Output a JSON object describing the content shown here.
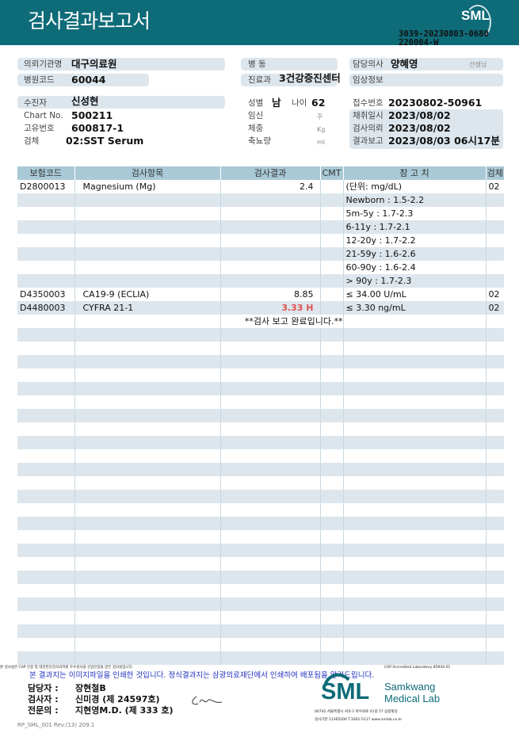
{
  "header": {
    "title": "검사결과보고서",
    "logo": "SML",
    "doc_no_line1": "3039-20230803-0680",
    "doc_no_line2": "220004-W",
    "brand_color": "#0e6b78"
  },
  "info": {
    "institution_label": "의뢰기관명",
    "institution": "대구의료원",
    "hospital_code_label": "병원코드",
    "hospital_code": "60044",
    "ward_label": "병  동",
    "ward": "",
    "dept_label": "진료과",
    "dept": "3건강증진센터",
    "doctor_label": "담당의사",
    "doctor": "양혜영",
    "doctor_suffix": "선생님",
    "clinical_label": "임상정보",
    "clinical": "",
    "patient_label": "수진자",
    "patient": "신성현",
    "chart_label": "Chart No.",
    "chart": "500211",
    "unique_label": "고유번호",
    "unique": "600817-1",
    "specimen_label": "검체",
    "specimen": "02:SST Serum",
    "sex_label": "성별",
    "sex": "남",
    "age_label": "나이",
    "age": "62",
    "pregnancy_label": "임신",
    "pregnancy_unit": "주",
    "weight_label": "체중",
    "weight_unit": "Kg",
    "urine_label": "축뇨량",
    "urine_unit": "ml",
    "receipt_label": "접수번호",
    "receipt": "20230802-50961",
    "collect_label": "채취일시",
    "collect": "2023/08/02",
    "request_label": "검사의뢰",
    "request": "2023/08/02",
    "report_label": "결과보고",
    "report": "2023/08/03 06시17분"
  },
  "table": {
    "headers": [
      "보험코드",
      "검사항목",
      "검사결과",
      "CMT",
      "참 고 치",
      "검체"
    ],
    "rows": [
      [
        "D2800013",
        "Magnesium (Mg)",
        "2.4",
        "",
        "(단위: mg/dL)",
        "02"
      ],
      [
        "",
        "",
        "",
        "",
        "Newborn : 1.5-2.2",
        ""
      ],
      [
        "",
        "",
        "",
        "",
        "5m-5y : 1.7-2.3",
        ""
      ],
      [
        "",
        "",
        "",
        "",
        "6-11y : 1.7-2.1",
        ""
      ],
      [
        "",
        "",
        "",
        "",
        "12-20y : 1.7-2.2",
        ""
      ],
      [
        "",
        "",
        "",
        "",
        "21-59y : 1.6-2.6",
        ""
      ],
      [
        "",
        "",
        "",
        "",
        "60-90y : 1.6-2.4",
        ""
      ],
      [
        "",
        "",
        "",
        "",
        "> 90y : 1.7-2.3",
        ""
      ],
      [
        "D4350003",
        "CA19-9 (ECLIA)",
        "8.85",
        "",
        "≤ 34.00 U/mL",
        "02"
      ],
      [
        "D4480003",
        "CYFRA 21-1",
        "3.33  H",
        "",
        "≤ 3.30 ng/mL",
        "02"
      ]
    ],
    "abnormal_row": 9,
    "complete_note": "**검사  보고  완료입니다.**",
    "high_color": "#e05050"
  },
  "footer": {
    "cap_note": "본 검사실은 CAP 인증 및 대한진단검사의학회 우수검사실 신임인증을 받은 검사실입니다.",
    "cap_no": "CAP Accredited Laboratory 85944-01",
    "image_note": "본 결과지는 이미지파일을 인쇄한 것입니다. 정식결과지는 삼광의료재단에서 인쇄하여 배포됨을 알려드립니다.",
    "staff": [
      {
        "label": "담당자 :",
        "name": "장현철B"
      },
      {
        "label": "검사자 :",
        "name": "신미경 (제 24597호)"
      },
      {
        "label": "전문의 :",
        "name": "지현영M.D. (제 333 호)"
      }
    ],
    "revision": "RP_SML_001 Rev.(13) 209.1",
    "lab_logo": "SML",
    "lab_name_1": "Samkwang",
    "lab_name_2": "Medical Lab",
    "address": "06742 서울특별시 서초구 바우뫼로 41길 57 삼광빌딩",
    "contact": "검사기관 11365200 T.1661-5117 www.smlab.co.kr"
  }
}
